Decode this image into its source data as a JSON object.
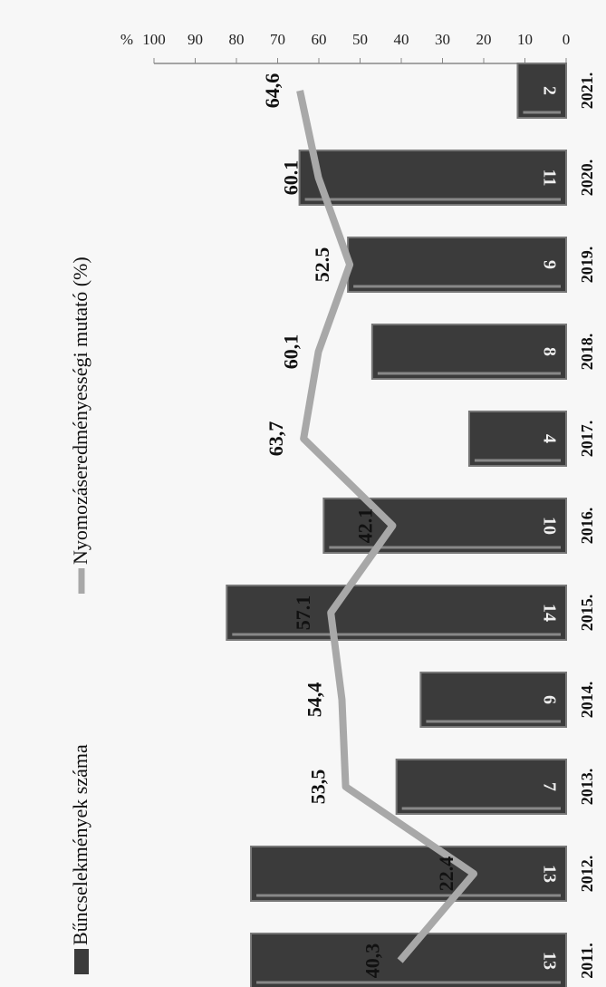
{
  "chart_data": {
    "type": "bar",
    "categories": [
      "2011.",
      "2012.",
      "2013.",
      "2014.",
      "2015.",
      "2016.",
      "2017.",
      "2018.",
      "2019.",
      "2020.",
      "2021."
    ],
    "series": [
      {
        "name": "Bűncselekmények száma",
        "type": "bar",
        "axis": "y2",
        "color": "#3b3b3b",
        "values": [
          13,
          13,
          7,
          6,
          14,
          10,
          4,
          8,
          9,
          11,
          2
        ]
      },
      {
        "name": "Nyomozáseredményességi mutató (%)",
        "type": "line",
        "color": "#a8a8a8",
        "values": [
          40.3,
          22.4,
          53.5,
          54.4,
          57.1,
          42.1,
          63.7,
          60.1,
          52.5,
          60.1,
          64.6
        ],
        "value_labels": [
          "40,3",
          "22.4",
          "53,5",
          "54,4",
          "57.1",
          "42.1",
          "63,7",
          "60,1",
          "52.5",
          "60.1",
          "64,6"
        ]
      }
    ],
    "ylabel": "%",
    "ylim": [
      0,
      100
    ],
    "yticks": [
      0,
      10,
      20,
      30,
      40,
      50,
      60,
      70,
      80,
      90,
      100
    ],
    "y2lim": [
      0,
      17
    ]
  }
}
